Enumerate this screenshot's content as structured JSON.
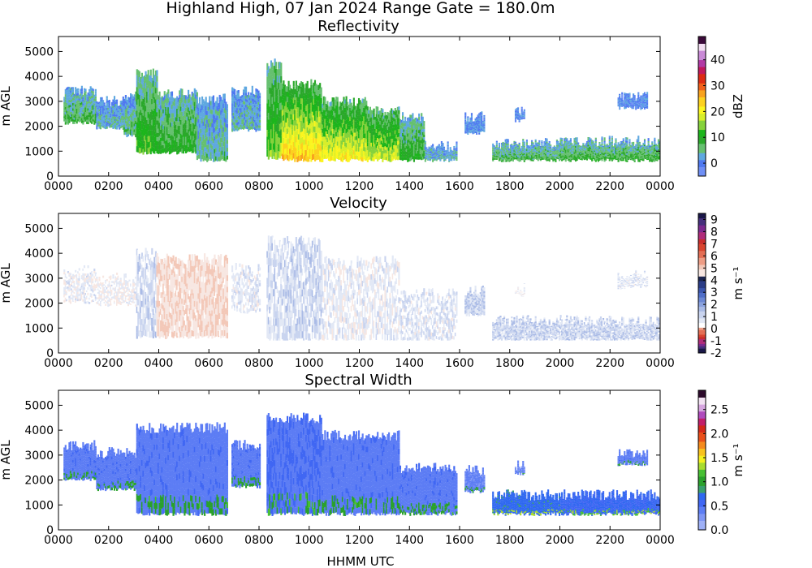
{
  "figure": {
    "suptitle": "Highland High, 07 Jan 2024 Range Gate = 180.0m",
    "xlabel": "HHMM UTC"
  },
  "colors": {
    "refl": [
      "#6f8ff5",
      "#4f79f0",
      "#5fa8e0",
      "#66c070",
      "#2ba82b",
      "#1cb51c",
      "#86d23c",
      "#d8ee2a",
      "#fbf51f",
      "#fcd11f",
      "#f8a21e",
      "#f0601a",
      "#dd2a13",
      "#c2185c",
      "#b23aa6",
      "#c98ad6",
      "#f2def2",
      "#3b0a3a"
    ],
    "vel_pos": [
      "#f7e7e2",
      "#f3c8b8",
      "#ee9d85",
      "#e46f55",
      "#d9452f",
      "#c92d2d",
      "#b02c7a",
      "#7c2a8f",
      "#46307d",
      "#1a1848"
    ],
    "vel_neg": [
      "#ffffff",
      "#e2e8f5",
      "#c9d4ef",
      "#aabbe6",
      "#8aa2de",
      "#6c88d4",
      "#4f6ec8",
      "#3b55ad",
      "#2a3c86",
      "#1a244f"
    ],
    "width": [
      "#9fb1f7",
      "#7f97f5",
      "#5d7df4",
      "#4067f3",
      "#2f68f0",
      "#39a06e",
      "#2aa12c",
      "#48c034",
      "#a8dc2f",
      "#f4f01f",
      "#f8c21e",
      "#f48a1d",
      "#e94f1a",
      "#d4291a",
      "#c21f6a",
      "#b04bbd",
      "#d7a6e0",
      "#f2e2f2",
      "#2c0a2b"
    ]
  },
  "chart_data": [
    {
      "type": "heatmap",
      "id": "reflectivity",
      "title": "Reflectivity",
      "xlabel": "",
      "ylabel": "m AGL",
      "xlim": [
        0,
        24
      ],
      "ylim": [
        0,
        5600
      ],
      "xticks": [
        "0000",
        "0200",
        "0400",
        "0600",
        "0800",
        "1000",
        "1200",
        "1400",
        "1600",
        "1800",
        "2000",
        "2200",
        "0000"
      ],
      "yticks": [
        "0",
        "1000",
        "2000",
        "3000",
        "4000",
        "5000"
      ],
      "colorbar": {
        "label": "dBZ",
        "range": [
          -5,
          49
        ],
        "ticks": [
          "0",
          "10",
          "20",
          "30",
          "40"
        ],
        "tick_values": [
          0,
          10,
          20,
          30,
          40
        ]
      },
      "echo_segments": [
        {
          "x0": 0.2,
          "x1": 1.5,
          "base": 2100,
          "top": 3400,
          "mean": 6
        },
        {
          "x0": 1.5,
          "x1": 2.6,
          "base": 1900,
          "top": 3000,
          "mean": 3
        },
        {
          "x0": 2.6,
          "x1": 3.1,
          "base": 1600,
          "top": 3200,
          "mean": 5
        },
        {
          "x0": 3.1,
          "x1": 3.9,
          "base": 900,
          "top": 4100,
          "mean": 10
        },
        {
          "x0": 3.9,
          "x1": 5.5,
          "base": 900,
          "top": 3300,
          "mean": 8
        },
        {
          "x0": 5.5,
          "x1": 6.7,
          "base": 600,
          "top": 3100,
          "mean": 4
        },
        {
          "x0": 6.9,
          "x1": 8.0,
          "base": 1800,
          "top": 3400,
          "mean": 3
        },
        {
          "x0": 8.3,
          "x1": 8.9,
          "base": 700,
          "top": 4500,
          "mean": 12
        },
        {
          "x0": 8.9,
          "x1": 10.5,
          "base": 600,
          "top": 3700,
          "mean": 20
        },
        {
          "x0": 10.5,
          "x1": 12.3,
          "base": 600,
          "top": 3000,
          "mean": 17
        },
        {
          "x0": 12.3,
          "x1": 13.6,
          "base": 600,
          "top": 2600,
          "mean": 15
        },
        {
          "x0": 13.6,
          "x1": 14.6,
          "base": 600,
          "top": 2400,
          "mean": 8
        },
        {
          "x0": 14.6,
          "x1": 15.9,
          "base": 600,
          "top": 1200,
          "mean": 3
        },
        {
          "x0": 16.2,
          "x1": 17.0,
          "base": 1700,
          "top": 2400,
          "mean": 1
        },
        {
          "x0": 18.2,
          "x1": 18.6,
          "base": 2200,
          "top": 2600,
          "mean": 0
        },
        {
          "x0": 17.3,
          "x1": 20.0,
          "base": 600,
          "top": 1300,
          "mean": 6
        },
        {
          "x0": 20.0,
          "x1": 24.0,
          "base": 600,
          "top": 1400,
          "mean": 7
        },
        {
          "x0": 22.3,
          "x1": 23.5,
          "base": 2700,
          "top": 3200,
          "mean": 0
        }
      ]
    },
    {
      "type": "heatmap",
      "id": "velocity",
      "title": "Velocity",
      "xlabel": "",
      "ylabel": "m AGL",
      "xlim": [
        0,
        24
      ],
      "ylim": [
        0,
        5600
      ],
      "xticks": [
        "0000",
        "0200",
        "0400",
        "0600",
        "0800",
        "1000",
        "1200",
        "1400",
        "1600",
        "1800",
        "2000",
        "2200",
        "0000"
      ],
      "yticks": [
        "0",
        "1000",
        "2000",
        "3000",
        "4000",
        "5000"
      ],
      "colorbar": {
        "label": "m s⁻¹",
        "range": [
          -2,
          9.5
        ],
        "ticks": [
          "-2",
          "-1",
          "0",
          "1",
          "2",
          "3",
          "4",
          "5",
          "6",
          "7",
          "8",
          "9"
        ],
        "tick_values": [
          -2,
          -1,
          0,
          1,
          2,
          3,
          4,
          5,
          6,
          7,
          8,
          9
        ]
      },
      "echo_segments": [
        {
          "x0": 0.2,
          "x1": 1.5,
          "base": 2000,
          "top": 3300,
          "mean": 0.3
        },
        {
          "x0": 1.5,
          "x1": 3.1,
          "base": 1900,
          "top": 3000,
          "mean": 0.2
        },
        {
          "x0": 3.1,
          "x1": 3.9,
          "base": 600,
          "top": 4000,
          "mean": 0.6
        },
        {
          "x0": 3.9,
          "x1": 6.7,
          "base": 600,
          "top": 3800,
          "mean": -0.3
        },
        {
          "x0": 6.9,
          "x1": 8.0,
          "base": 1600,
          "top": 3400,
          "mean": 0.4
        },
        {
          "x0": 8.3,
          "x1": 10.5,
          "base": 500,
          "top": 4500,
          "mean": 0.6
        },
        {
          "x0": 10.5,
          "x1": 13.6,
          "base": 500,
          "top": 3700,
          "mean": 0.3
        },
        {
          "x0": 13.6,
          "x1": 15.9,
          "base": 500,
          "top": 2400,
          "mean": 0.4
        },
        {
          "x0": 16.2,
          "x1": 17.0,
          "base": 1500,
          "top": 2500,
          "mean": 0.8
        },
        {
          "x0": 18.2,
          "x1": 18.6,
          "base": 2300,
          "top": 2600,
          "mean": 0.2
        },
        {
          "x0": 17.3,
          "x1": 24.0,
          "base": 500,
          "top": 1300,
          "mean": 0.7
        },
        {
          "x0": 22.3,
          "x1": 23.5,
          "base": 2600,
          "top": 3100,
          "mean": 0.4
        }
      ]
    },
    {
      "type": "heatmap",
      "id": "spectral_width",
      "title": "Spectral Width",
      "xlabel": "HHMM UTC",
      "ylabel": "m AGL",
      "xlim": [
        0,
        24
      ],
      "ylim": [
        0,
        5600
      ],
      "xticks": [
        "0000",
        "0200",
        "0400",
        "0600",
        "0800",
        "1000",
        "1200",
        "1400",
        "1600",
        "1800",
        "2000",
        "2200",
        "0000"
      ],
      "yticks": [
        "0",
        "1000",
        "2000",
        "3000",
        "4000",
        "5000"
      ],
      "colorbar": {
        "label": "m s⁻¹",
        "range": [
          0,
          2.9
        ],
        "ticks": [
          "0.0",
          "0.5",
          "1.0",
          "1.5",
          "2.0",
          "2.5"
        ],
        "tick_values": [
          0,
          0.5,
          1.0,
          1.5,
          2.0,
          2.5
        ]
      },
      "echo_segments": [
        {
          "x0": 0.2,
          "x1": 1.5,
          "base": 2000,
          "top": 3400,
          "mean": 0.4
        },
        {
          "x0": 1.5,
          "x1": 3.1,
          "base": 1600,
          "top": 3100,
          "mean": 0.4
        },
        {
          "x0": 3.1,
          "x1": 6.7,
          "base": 600,
          "top": 4100,
          "mean": 0.4
        },
        {
          "x0": 6.9,
          "x1": 8.0,
          "base": 1700,
          "top": 3400,
          "mean": 0.4
        },
        {
          "x0": 8.3,
          "x1": 10.5,
          "base": 600,
          "top": 4500,
          "mean": 0.45
        },
        {
          "x0": 10.5,
          "x1": 13.6,
          "base": 600,
          "top": 3800,
          "mean": 0.4
        },
        {
          "x0": 13.6,
          "x1": 15.9,
          "base": 600,
          "top": 2500,
          "mean": 0.4
        },
        {
          "x0": 16.2,
          "x1": 17.0,
          "base": 1500,
          "top": 2400,
          "mean": 0.35
        },
        {
          "x0": 18.2,
          "x1": 18.6,
          "base": 2200,
          "top": 2600,
          "mean": 0.35
        },
        {
          "x0": 17.3,
          "x1": 20.0,
          "base": 600,
          "top": 1400,
          "mean": 0.7
        },
        {
          "x0": 20.0,
          "x1": 24.0,
          "base": 600,
          "top": 1400,
          "mean": 0.6
        },
        {
          "x0": 22.3,
          "x1": 23.5,
          "base": 2600,
          "top": 3100,
          "mean": 0.4
        }
      ]
    }
  ]
}
